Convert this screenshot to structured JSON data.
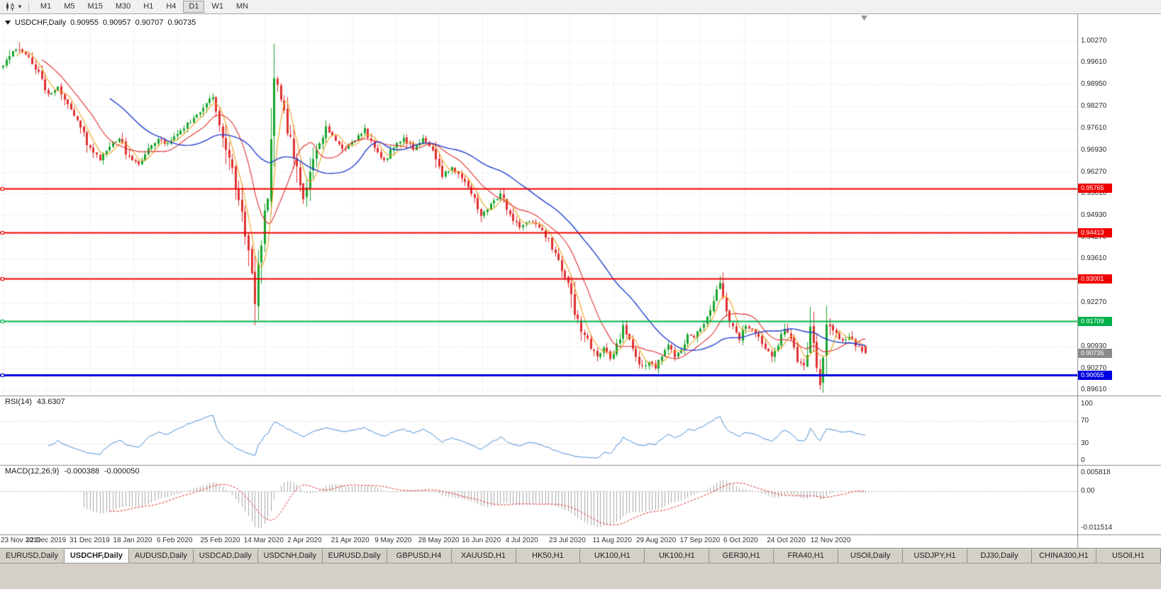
{
  "window": {
    "title": "USDCHF,Daily"
  },
  "toolbar": {
    "timeframes": [
      "M1",
      "M5",
      "M15",
      "M30",
      "H1",
      "H4",
      "D1",
      "W1",
      "MN"
    ],
    "active_timeframe": "D1"
  },
  "chart": {
    "symbol": "USDCHF,Daily",
    "open": "0.90955",
    "high": "0.90957",
    "low": "0.90707",
    "close": "0.90735",
    "price_scale_labels": [
      "1.00270",
      "0.99610",
      "0.98950",
      "0.98270",
      "0.97610",
      "0.96930",
      "0.96270",
      "0.95610",
      "0.94930",
      "0.94270",
      "0.93610",
      "0.92930",
      "0.92270",
      "0.91610",
      "0.90930",
      "0.90270",
      "0.89610"
    ],
    "date_labels": [
      "23 Nov 2019",
      "12 Dec 2019",
      "31 Dec 2019",
      "18 Jan 2020",
      "6 Feb 2020",
      "25 Feb 2020",
      "14 Mar 2020",
      "2 Apr 2020",
      "21 Apr 2020",
      "9 May 2020",
      "28 May 2020",
      "16 Jun 2020",
      "4 Jul 2020",
      "23 Jul 2020",
      "11 Aug 2020",
      "29 Aug 2020",
      "17 Sep 2020",
      "6 Oct 2020",
      "24 Oct 2020",
      "12 Nov 2020"
    ],
    "hlines": [
      {
        "price": 0.95765,
        "label": "0.95765",
        "color": "#f00000",
        "width": 2
      },
      {
        "price": 0.94413,
        "label": "0.94413",
        "color": "#f00000",
        "width": 2
      },
      {
        "price": 0.93001,
        "label": "0.93001",
        "color": "#f00000",
        "width": 2
      },
      {
        "price": 0.91709,
        "label": "0.91709",
        "color": "#00b04a",
        "width": 2
      },
      {
        "price": 0.90055,
        "label": "0.90055",
        "color": "#0000e0",
        "width": 3
      }
    ],
    "current_price": {
      "value": 0.90735,
      "label": "0.90735",
      "tag_color": "#8a8a8a"
    },
    "colors": {
      "up": "#19a52c",
      "down": "#e03030",
      "grid": "#dadada"
    }
  },
  "chart_data": {
    "type": "candlestick",
    "title": "USDCHF,Daily",
    "ylim": [
      0.8961,
      1.0027
    ],
    "bars": 268,
    "keypoints": [
      [
        0,
        0.995
      ],
      [
        2,
        0.9985
      ],
      [
        5,
        1.0005
      ],
      [
        8,
        0.9978
      ],
      [
        11,
        0.993
      ],
      [
        14,
        0.9862
      ],
      [
        17,
        0.9888
      ],
      [
        20,
        0.983
      ],
      [
        23,
        0.9788
      ],
      [
        26,
        0.9718
      ],
      [
        30,
        0.9663
      ],
      [
        33,
        0.9712
      ],
      [
        36,
        0.973
      ],
      [
        39,
        0.9668
      ],
      [
        42,
        0.9652
      ],
      [
        45,
        0.97
      ],
      [
        48,
        0.973
      ],
      [
        51,
        0.9712
      ],
      [
        54,
        0.9745
      ],
      [
        57,
        0.9772
      ],
      [
        60,
        0.98
      ],
      [
        63,
        0.9842
      ],
      [
        65,
        0.9858
      ],
      [
        67,
        0.978
      ],
      [
        69,
        0.9698
      ],
      [
        71,
        0.963
      ],
      [
        73,
        0.9558
      ],
      [
        75,
        0.944
      ],
      [
        77,
        0.933
      ],
      [
        78,
        0.9252
      ],
      [
        80,
        0.94
      ],
      [
        82,
        0.956
      ],
      [
        84,
        0.9868
      ],
      [
        85,
        0.9888
      ],
      [
        87,
        0.9798
      ],
      [
        89,
        0.9718
      ],
      [
        91,
        0.9628
      ],
      [
        93,
        0.9558
      ],
      [
        95,
        0.964
      ],
      [
        97,
        0.97
      ],
      [
        100,
        0.9758
      ],
      [
        103,
        0.9728
      ],
      [
        106,
        0.969
      ],
      [
        109,
        0.973
      ],
      [
        112,
        0.9758
      ],
      [
        115,
        0.97
      ],
      [
        118,
        0.966
      ],
      [
        121,
        0.9708
      ],
      [
        124,
        0.9728
      ],
      [
        127,
        0.97
      ],
      [
        130,
        0.9728
      ],
      [
        133,
        0.9698
      ],
      [
        136,
        0.9618
      ],
      [
        139,
        0.964
      ],
      [
        142,
        0.9608
      ],
      [
        145,
        0.956
      ],
      [
        148,
        0.9498
      ],
      [
        151,
        0.9528
      ],
      [
        154,
        0.9558
      ],
      [
        157,
        0.9498
      ],
      [
        160,
        0.945
      ],
      [
        163,
        0.9478
      ],
      [
        166,
        0.9458
      ],
      [
        169,
        0.942
      ],
      [
        172,
        0.935
      ],
      [
        175,
        0.9288
      ],
      [
        177,
        0.9198
      ],
      [
        179,
        0.9148
      ],
      [
        181,
        0.9108
      ],
      [
        184,
        0.9068
      ],
      [
        186,
        0.9088
      ],
      [
        188,
        0.9058
      ],
      [
        190,
        0.9098
      ],
      [
        192,
        0.9148
      ],
      [
        194,
        0.9118
      ],
      [
        196,
        0.9058
      ],
      [
        198,
        0.9028
      ],
      [
        200,
        0.9048
      ],
      [
        202,
        0.9028
      ],
      [
        204,
        0.9068
      ],
      [
        206,
        0.9098
      ],
      [
        208,
        0.9068
      ],
      [
        210,
        0.9088
      ],
      [
        212,
        0.9128
      ],
      [
        214,
        0.9118
      ],
      [
        216,
        0.9148
      ],
      [
        218,
        0.9188
      ],
      [
        220,
        0.9238
      ],
      [
        222,
        0.9288
      ],
      [
        224,
        0.9208
      ],
      [
        226,
        0.9148
      ],
      [
        228,
        0.9118
      ],
      [
        230,
        0.9158
      ],
      [
        232,
        0.9148
      ],
      [
        234,
        0.9118
      ],
      [
        236,
        0.9088
      ],
      [
        238,
        0.9058
      ],
      [
        240,
        0.9098
      ],
      [
        242,
        0.9148
      ],
      [
        244,
        0.9118
      ],
      [
        246,
        0.9058
      ],
      [
        248,
        0.9038
      ],
      [
        250,
        0.9138
      ],
      [
        252,
        0.9028
      ],
      [
        253,
        0.8978
      ],
      [
        254,
        0.9038
      ],
      [
        255,
        0.9128
      ],
      [
        256,
        0.9158
      ],
      [
        258,
        0.9128
      ],
      [
        260,
        0.9108
      ],
      [
        262,
        0.9128
      ],
      [
        264,
        0.9098
      ],
      [
        266,
        0.9082
      ],
      [
        267,
        0.9074
      ]
    ],
    "wick_overrides": {
      "5": {
        "high": 1.0023
      },
      "78": {
        "low": 0.9182
      },
      "85": {
        "high": 0.9901
      },
      "222": {
        "high": 0.9296
      },
      "250": {
        "high": 0.9215
      },
      "253": {
        "low": 0.8961
      }
    },
    "moving_averages": [
      {
        "period": 5,
        "color": "#eea320"
      },
      {
        "period": 13,
        "color": "#e03030"
      },
      {
        "period": 34,
        "color": "#2440cf"
      }
    ]
  },
  "rsi": {
    "name": "RSI(14)",
    "value": "43.6307",
    "period": 14,
    "levels": [
      70,
      30
    ],
    "scale_labels": [
      "100",
      "70",
      "30",
      "0"
    ],
    "color": "#4a8fd3"
  },
  "macd": {
    "name": "MACD(12,26,9)",
    "value_main": "-0.000388",
    "value_signal": "-0.000050",
    "fast": 12,
    "slow": 26,
    "signal": 9,
    "scale_labels": [
      "0.005818",
      "0.00",
      "-0.011514"
    ],
    "hist_color": "#a8a8a8",
    "signal_color": "#e03030"
  },
  "tabs": {
    "items": [
      {
        "label": "EURUSD,Daily"
      },
      {
        "label": "USDCHF,Daily",
        "active": true
      },
      {
        "label": "AUDUSD,Daily"
      },
      {
        "label": "USDCAD,Daily"
      },
      {
        "label": "USDCNH,Daily"
      },
      {
        "label": "EURUSD,Daily"
      },
      {
        "label": "GBPUSD,H4"
      },
      {
        "label": "XAUUSD,H1"
      },
      {
        "label": "HK50,H1"
      },
      {
        "label": "UK100,H1"
      },
      {
        "label": "UK100,H1"
      },
      {
        "label": "GER30,H1"
      },
      {
        "label": "FRA40,H1"
      },
      {
        "label": "USOil,Daily"
      },
      {
        "label": "USDJPY,H1"
      },
      {
        "label": "DJ30,Daily"
      },
      {
        "label": "CHINA300,H1"
      },
      {
        "label": "USOil,H1"
      }
    ]
  }
}
